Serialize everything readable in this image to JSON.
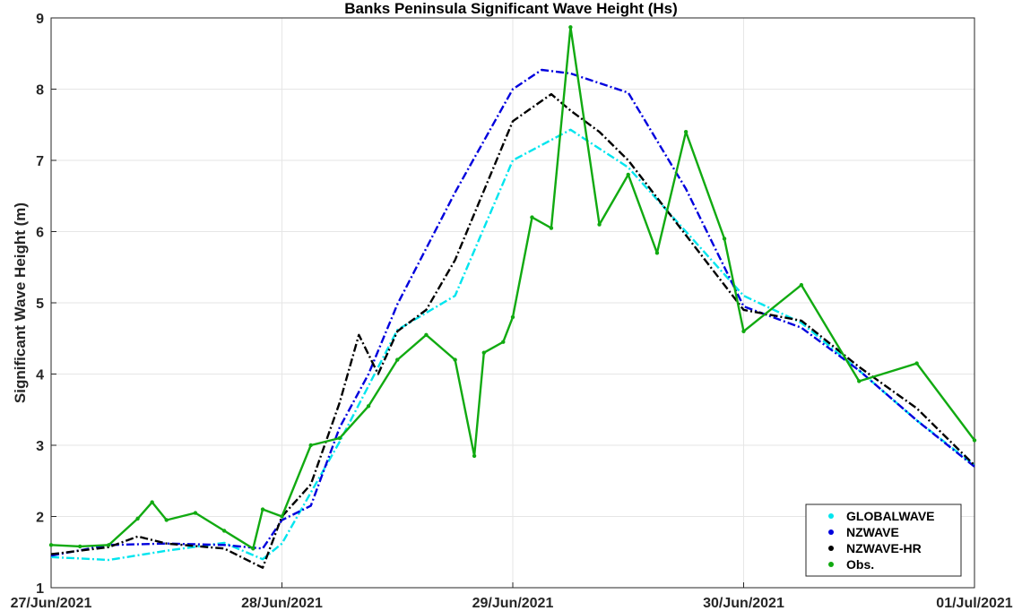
{
  "chart_data": {
    "type": "line",
    "title": "Banks Peninsula Significant Wave Height (Hs)",
    "xlabel": "",
    "ylabel": "Significant Wave Height (m)",
    "x_ticks": [
      "27/Jun/2021",
      "28/Jun/2021",
      "29/Jun/2021",
      "30/Jun/2021",
      "01/Jul/2021"
    ],
    "xlim": [
      "2021-06-27T00:00",
      "2021-07-01T00:00"
    ],
    "ylim": [
      1,
      9
    ],
    "y_ticks": [
      1,
      2,
      3,
      4,
      5,
      6,
      7,
      8,
      9
    ],
    "grid": true,
    "legend_position": "bottom-right",
    "series": [
      {
        "name": "GLOBALWAVE",
        "color": "#00e5ee",
        "x": [
          "2021-06-27T00:00",
          "2021-06-27T06:00",
          "2021-06-27T12:00",
          "2021-06-27T18:00",
          "2021-06-27T22:00",
          "2021-06-28T00:00",
          "2021-06-28T06:00",
          "2021-06-28T12:00",
          "2021-06-28T18:00",
          "2021-06-29T00:00",
          "2021-06-29T06:00",
          "2021-06-29T12:00",
          "2021-06-29T18:00",
          "2021-06-30T00:00",
          "2021-06-30T06:00",
          "2021-06-30T12:00",
          "2021-06-30T18:00",
          "2021-07-01T00:00"
        ],
        "y": [
          1.43,
          1.39,
          1.52,
          1.63,
          1.4,
          1.62,
          3.05,
          4.62,
          5.1,
          7.0,
          7.43,
          6.9,
          6.0,
          5.1,
          4.72,
          4.05,
          3.35,
          2.72
        ]
      },
      {
        "name": "NZWAVE",
        "color": "#0000dd",
        "x": [
          "2021-06-27T00:00",
          "2021-06-27T06:00",
          "2021-06-27T12:00",
          "2021-06-27T18:00",
          "2021-06-27T22:00",
          "2021-06-28T00:00",
          "2021-06-28T03:00",
          "2021-06-28T06:00",
          "2021-06-28T09:00",
          "2021-06-28T12:00",
          "2021-06-28T18:00",
          "2021-06-29T00:00",
          "2021-06-29T03:00",
          "2021-06-29T06:00",
          "2021-06-29T12:00",
          "2021-06-29T18:00",
          "2021-06-30T00:00",
          "2021-06-30T06:00",
          "2021-06-30T12:00",
          "2021-06-30T18:00",
          "2021-07-01T00:00"
        ],
        "y": [
          1.45,
          1.6,
          1.62,
          1.6,
          1.55,
          1.95,
          2.15,
          3.25,
          4.0,
          4.98,
          6.55,
          8.0,
          8.27,
          8.22,
          7.95,
          6.6,
          4.95,
          4.65,
          4.05,
          3.35,
          2.7
        ]
      },
      {
        "name": "NZWAVE-HR",
        "color": "#000000",
        "x": [
          "2021-06-27T00:00",
          "2021-06-27T06:00",
          "2021-06-27T09:00",
          "2021-06-27T12:00",
          "2021-06-27T18:00",
          "2021-06-27T22:00",
          "2021-06-28T00:00",
          "2021-06-28T03:00",
          "2021-06-28T06:00",
          "2021-06-28T08:00",
          "2021-06-28T10:00",
          "2021-06-28T12:00",
          "2021-06-28T15:00",
          "2021-06-28T18:00",
          "2021-06-29T00:00",
          "2021-06-29T04:00",
          "2021-06-29T06:00",
          "2021-06-29T09:00",
          "2021-06-29T12:00",
          "2021-06-29T18:00",
          "2021-06-30T00:00",
          "2021-06-30T06:00",
          "2021-06-30T12:00",
          "2021-06-30T18:00",
          "2021-07-01T00:00"
        ],
        "y": [
          1.47,
          1.57,
          1.72,
          1.62,
          1.55,
          1.28,
          2.0,
          2.45,
          3.6,
          4.55,
          4.0,
          4.6,
          4.9,
          5.6,
          7.55,
          7.93,
          7.7,
          7.4,
          7.0,
          5.95,
          4.9,
          4.75,
          4.1,
          3.52,
          2.72
        ]
      },
      {
        "name": "Obs.",
        "color": "#11aa11",
        "x": [
          "2021-06-27T00:00",
          "2021-06-27T03:00",
          "2021-06-27T06:00",
          "2021-06-27T09:00",
          "2021-06-27T10:30",
          "2021-06-27T12:00",
          "2021-06-27T15:00",
          "2021-06-27T18:00",
          "2021-06-27T21:00",
          "2021-06-27T22:00",
          "2021-06-28T00:00",
          "2021-06-28T03:00",
          "2021-06-28T06:00",
          "2021-06-28T09:00",
          "2021-06-28T12:00",
          "2021-06-28T15:00",
          "2021-06-28T18:00",
          "2021-06-28T20:00",
          "2021-06-28T21:00",
          "2021-06-28T23:00",
          "2021-06-29T00:00",
          "2021-06-29T02:00",
          "2021-06-29T04:00",
          "2021-06-29T06:00",
          "2021-06-29T09:00",
          "2021-06-29T12:00",
          "2021-06-29T15:00",
          "2021-06-29T18:00",
          "2021-06-29T22:00",
          "2021-06-30T00:00",
          "2021-06-30T06:00",
          "2021-06-30T12:00",
          "2021-06-30T18:00",
          "2021-07-01T00:00"
        ],
        "y": [
          1.6,
          1.58,
          1.6,
          1.97,
          2.2,
          1.95,
          2.05,
          1.8,
          1.55,
          2.1,
          2.0,
          3.0,
          3.1,
          3.55,
          4.2,
          4.55,
          4.2,
          2.85,
          4.3,
          4.45,
          4.8,
          6.2,
          6.05,
          8.87,
          6.1,
          6.8,
          5.7,
          7.4,
          5.9,
          4.6,
          5.25,
          3.9,
          4.15,
          3.07
        ]
      }
    ]
  }
}
